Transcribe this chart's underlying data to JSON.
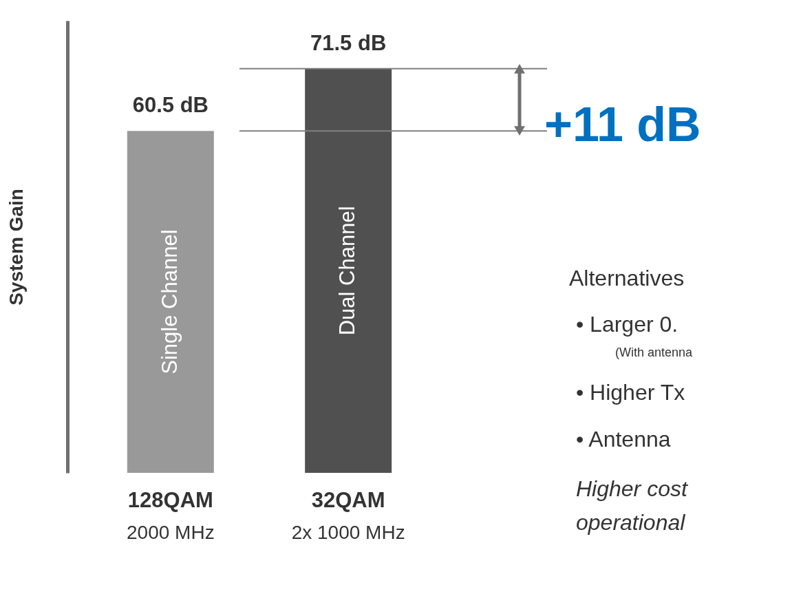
{
  "chart_data": {
    "type": "bar",
    "ylabel": "System Gain",
    "categories": [
      "128QAM",
      "32QAM"
    ],
    "values": [
      60.5,
      71.5
    ],
    "colors": [
      "#999999",
      "#505050"
    ],
    "value_labels": [
      "60.5 dB",
      "71.5 dB"
    ],
    "ref_lines": [
      {
        "axis": "y",
        "value": 60.5,
        "color": "#808080"
      },
      {
        "axis": "y",
        "value": 71.5,
        "color": "#808080"
      }
    ],
    "annotations": [
      "2000 MHz",
      "2x 1000 MHz",
      "Single Channel",
      "Dual Channel",
      "+11 dB",
      "Alternatives",
      "•    Larger 0.",
      "(With antenna",
      "•    Higher Tx",
      "•    Antenna",
      "Higher cost",
      "operational"
    ],
    "tick_labels": "x",
    "grid": false
  }
}
